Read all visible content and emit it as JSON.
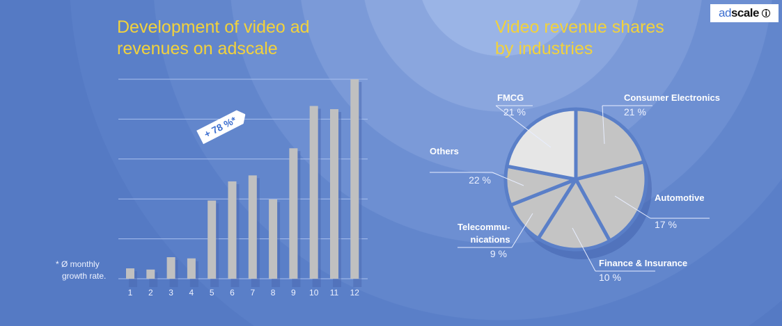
{
  "logo": {
    "part1": "ad",
    "part2": "scale",
    "mark": "i"
  },
  "chart_data": [
    {
      "type": "bar",
      "title": "Development of video ad\nrevenues on adscale",
      "categories": [
        "1",
        "2",
        "3",
        "4",
        "5",
        "6",
        "7",
        "8",
        "9",
        "10",
        "11",
        "12"
      ],
      "values": [
        0.26,
        0.23,
        0.54,
        0.51,
        1.96,
        2.44,
        2.59,
        1.99,
        3.27,
        4.33,
        4.25,
        5.0
      ],
      "ylim": [
        0,
        5
      ],
      "grid": true,
      "bar_color": "#c0c0c0",
      "annotation": "+ 78 %*",
      "footnote": [
        "* Ø monthly",
        "growth rate."
      ]
    },
    {
      "type": "pie",
      "title": "Video revenue shares\nby industries",
      "slices": [
        {
          "label": "FMCG",
          "value": 21,
          "pct": "21 %",
          "color": "#c4c4c4"
        },
        {
          "label": "Consumer Electronics",
          "value": 21,
          "pct": "21 %",
          "color": "#c4c4c4"
        },
        {
          "label": "Automotive",
          "value": 17,
          "pct": "17 %",
          "color": "#c4c4c4"
        },
        {
          "label": "Finance & Insurance",
          "value": 10,
          "pct": "10 %",
          "color": "#c4c4c4"
        },
        {
          "label": "Telecommu-\nnications",
          "value": 9,
          "pct": "9 %",
          "color": "#c4c4c4"
        },
        {
          "label": "Others",
          "value": 22,
          "pct": "22 %",
          "color": "#e6e6e6"
        }
      ]
    }
  ],
  "colors": {
    "title": "#f2d23c",
    "background": "#557ac4"
  }
}
